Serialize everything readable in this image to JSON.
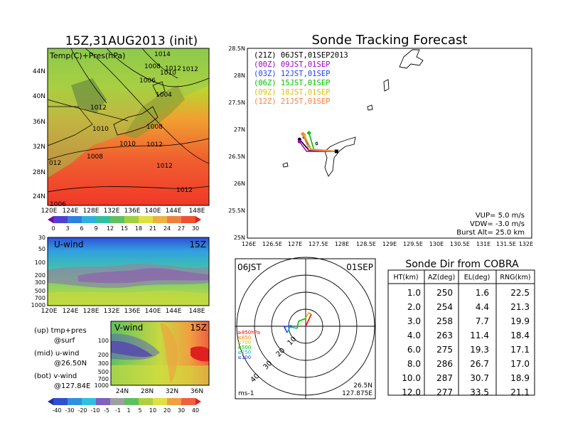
{
  "panels": {
    "surface_title": "15Z,31AUG2013 (init)",
    "surface_label": "Temp(C)+Pres(hPa)",
    "surface_lat_ticks": [
      "44N",
      "40N",
      "36N",
      "32N",
      "28N",
      "24N"
    ],
    "surface_lon_ticks": [
      "120E",
      "124E",
      "128E",
      "132E",
      "136E",
      "140E",
      "144E",
      "148E"
    ],
    "isobar_labels": [
      "1014",
      "1012",
      "1008",
      "1010",
      "1012",
      "1006",
      "1004",
      "1012",
      "1010",
      "1008",
      "1010",
      "1008",
      "1012",
      "1012",
      "012",
      "1012",
      "1006"
    ],
    "temp_colorbar": [
      "0",
      "3",
      "6",
      "9",
      "12",
      "15",
      "18",
      "21",
      "24",
      "27",
      "30"
    ],
    "uwind_label": "U-wind",
    "uwind_time": "15Z",
    "press_ticks": [
      "30",
      "50",
      "100",
      "200",
      "300",
      "500",
      "700",
      "1000"
    ],
    "uwind_lon_ticks": [
      "120E",
      "124E",
      "128E",
      "132E",
      "136E",
      "140E",
      "144E",
      "148E"
    ],
    "vwind_label": "V-wind",
    "vwind_time": "15Z",
    "vwind_press_ticks": [
      "100",
      "200",
      "300",
      "500",
      "700",
      "1000"
    ],
    "vwind_lat_ticks": [
      "24N",
      "28N",
      "32N",
      "36N"
    ],
    "legend_lines": [
      "(up) tmp+pres",
      "@surf",
      "(mid) u-wind",
      "@26.50N",
      "(bot) v-wind",
      "@127.84E"
    ],
    "wind_colorbar": [
      "-40",
      "-30",
      "-20",
      "-10",
      "-5",
      "-1",
      "1",
      "5",
      "10",
      "20",
      "30",
      "40"
    ]
  },
  "tracking": {
    "title": "Sonde Tracking Forecast",
    "legend": [
      {
        "text": "(21Z)  06JST,01SEP2013",
        "color": "#000000"
      },
      {
        "text": "(00Z)  09JST,01SEP",
        "color": "#a000c8"
      },
      {
        "text": "(03Z)  12JST,01SEP",
        "color": "#2040ff"
      },
      {
        "text": "(06Z)  15JST,01SEP",
        "color": "#00c000"
      },
      {
        "text": "(09Z)  18JST,01SEP",
        "color": "#e0c000"
      },
      {
        "text": "(12Z)  21JST,01SEP",
        "color": "#ff8040"
      }
    ],
    "lat_ticks": [
      "28.5N",
      "28N",
      "27.5N",
      "27N",
      "26.5N",
      "26N",
      "25.5N",
      "25N"
    ],
    "lon_ticks": [
      "126E",
      "126.5E",
      "127E",
      "127.5E",
      "128E",
      "128.5E",
      "129E",
      "129.5E",
      "130E",
      "130.5E",
      "131E",
      "131.5E",
      "132E"
    ],
    "params": [
      "VUP=  5.0  m/s",
      "VDW=  -3.0  m/s",
      "Burst Alt=  25.0  km"
    ]
  },
  "polar": {
    "time": "06JST",
    "date": "01SEP",
    "ring_labels": [
      "10",
      "20",
      "30",
      "40"
    ],
    "level_legend": [
      {
        "text": "≥850hPa",
        "color": "#ff0000"
      },
      {
        "text": "≤850",
        "color": "#ff8000"
      },
      {
        "text": "≤700",
        "color": "#e0c000"
      },
      {
        "text": "≤500",
        "color": "#00c000"
      },
      {
        "text": "≤250",
        "color": "#00c0c0"
      },
      {
        "text": "≤100",
        "color": "#2040ff"
      }
    ],
    "unit": "ms-1",
    "loc_lat": "26.5N",
    "loc_lon": "127.875E"
  },
  "cobra": {
    "title": "Sonde Dir from COBRA",
    "headers": [
      "HT(km)",
      "AZ(deg)",
      "EL(deg)",
      "RNG(km)"
    ],
    "rows": [
      [
        "1.0",
        "250",
        "1.6",
        "22.5"
      ],
      [
        "2.0",
        "254",
        "4.4",
        "21.3"
      ],
      [
        "3.0",
        "258",
        "7.7",
        "19.9"
      ],
      [
        "4.0",
        "263",
        "11.4",
        "18.4"
      ],
      [
        "6.0",
        "275",
        "19.3",
        "17.1"
      ],
      [
        "8.0",
        "286",
        "26.7",
        "17.0"
      ],
      [
        "10.0",
        "287",
        "30.7",
        "18.9"
      ],
      [
        "12.0",
        "277",
        "33.5",
        "21.1"
      ]
    ]
  },
  "chart_data": {
    "type": "line",
    "title": "Sonde Tracking Forecast",
    "xlim": [
      126,
      132
    ],
    "ylim": [
      25,
      28.5
    ],
    "series": [
      {
        "name": "(21Z) 06JST,01SEP2013",
        "color": "#000000",
        "x": [
          127.88,
          127.3,
          127.1
        ],
        "y": [
          26.6,
          26.62,
          26.82
        ]
      },
      {
        "name": "(00Z) 09JST,01SEP",
        "color": "#a000c8",
        "x": [
          127.88,
          127.25,
          127.1
        ],
        "y": [
          26.6,
          26.6,
          26.78
        ]
      },
      {
        "name": "(03Z) 12JST,01SEP",
        "color": "#2040ff",
        "x": [
          127.88,
          127.35,
          127.2
        ],
        "y": [
          26.6,
          26.63,
          26.86
        ]
      },
      {
        "name": "(06Z) 15JST,01SEP",
        "color": "#00c000",
        "x": [
          127.88,
          127.4,
          127.3
        ],
        "y": [
          26.6,
          26.64,
          26.94
        ]
      },
      {
        "name": "(09Z) 18JST,01SEP",
        "color": "#e0c000",
        "x": [
          127.88,
          127.35,
          127.2
        ],
        "y": [
          26.6,
          26.64,
          26.9
        ]
      },
      {
        "name": "(12Z) 21JST,01SEP",
        "color": "#ff8040",
        "x": [
          127.88,
          127.3,
          127.17
        ],
        "y": [
          26.6,
          26.63,
          26.92
        ]
      }
    ]
  }
}
